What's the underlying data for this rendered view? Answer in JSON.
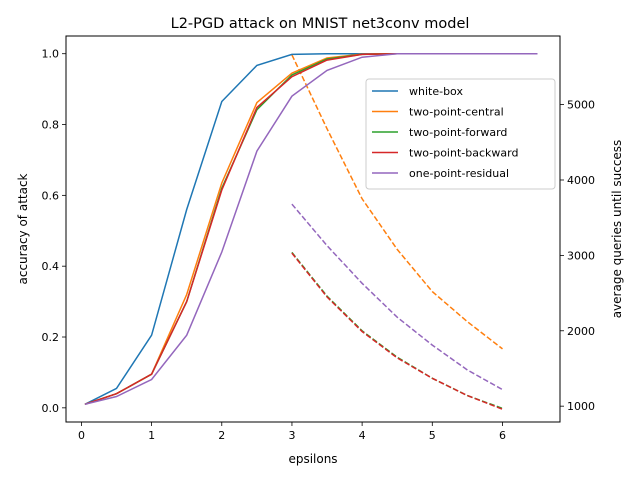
{
  "chart_data": {
    "type": "line",
    "title": "L2-PGD attack on MNIST net3conv model",
    "xlabel": "epsilons",
    "ylabel": "accuracy of attack",
    "y2label": "average queries until success",
    "xlim": [
      -0.22,
      6.82
    ],
    "ylim": [
      -0.04,
      1.05
    ],
    "y2lim": [
      790,
      5910
    ],
    "xticks": [
      0,
      1,
      2,
      3,
      4,
      5,
      6
    ],
    "yticks": [
      0.0,
      0.2,
      0.4,
      0.6,
      0.8,
      1.0
    ],
    "ytick_labels": [
      "0.0",
      "0.2",
      "0.4",
      "0.6",
      "0.8",
      "1.0"
    ],
    "y2ticks": [
      1000,
      2000,
      3000,
      4000,
      5000
    ],
    "grid": false,
    "legend_position": "upper right",
    "accuracy_x": [
      0.05,
      0.5,
      1.0,
      1.5,
      2.0,
      2.5,
      3.0,
      3.5,
      4.0,
      4.5,
      5.0,
      5.5,
      6.0,
      6.5
    ],
    "accuracy_series": [
      {
        "name": "white-box",
        "color": "#1f77b4",
        "values": [
          0.01,
          0.055,
          0.205,
          0.56,
          0.865,
          0.967,
          0.998,
          1.0,
          1.0,
          1.0,
          1.0,
          1.0,
          1.0,
          1.0
        ]
      },
      {
        "name": "two-point-central",
        "color": "#ff7f0e",
        "values": [
          0.01,
          0.04,
          0.095,
          0.32,
          0.635,
          0.862,
          0.945,
          0.988,
          0.999,
          1.0,
          1.0,
          1.0,
          1.0,
          1.0
        ]
      },
      {
        "name": "two-point-forward",
        "color": "#2ca02c",
        "values": [
          0.01,
          0.04,
          0.095,
          0.3,
          0.62,
          0.842,
          0.94,
          0.985,
          0.998,
          1.0,
          1.0,
          1.0,
          1.0,
          1.0
        ]
      },
      {
        "name": "two-point-backward",
        "color": "#d62728",
        "values": [
          0.01,
          0.04,
          0.095,
          0.3,
          0.615,
          0.848,
          0.935,
          0.982,
          0.998,
          1.0,
          1.0,
          1.0,
          1.0,
          1.0
        ]
      },
      {
        "name": "one-point-residual",
        "color": "#9467bd",
        "values": [
          0.01,
          0.032,
          0.08,
          0.205,
          0.44,
          0.725,
          0.88,
          0.953,
          0.99,
          1.0,
          1.0,
          1.0,
          1.0,
          1.0
        ]
      }
    ],
    "queries_x": [
      3.0,
      3.5,
      4.0,
      4.5,
      5.0,
      5.5,
      6.0
    ],
    "queries_series": [
      {
        "name": "two-point-central",
        "color": "#ff7f0e",
        "values": [
          5660,
          4680,
          3750,
          3080,
          2520,
          2120,
          1760
        ]
      },
      {
        "name": "two-point-forward",
        "color": "#2ca02c",
        "values": [
          3040,
          2460,
          2000,
          1650,
          1370,
          1140,
          970
        ]
      },
      {
        "name": "two-point-backward",
        "color": "#d62728",
        "values": [
          3030,
          2450,
          1990,
          1640,
          1370,
          1140,
          960
        ]
      },
      {
        "name": "one-point-residual",
        "color": "#9467bd",
        "values": [
          3680,
          3130,
          2630,
          2180,
          1810,
          1480,
          1220
        ]
      }
    ]
  }
}
